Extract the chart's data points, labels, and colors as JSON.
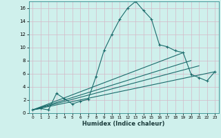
{
  "title": "",
  "xlabel": "Humidex (Indice chaleur)",
  "ylabel": "",
  "bg_color": "#cff0ec",
  "grid_color": "#d4b8c8",
  "line_color": "#1a6b6b",
  "xlim": [
    -0.5,
    23.5
  ],
  "ylim": [
    0,
    17
  ],
  "xticks": [
    0,
    1,
    2,
    3,
    4,
    5,
    6,
    7,
    8,
    9,
    10,
    11,
    12,
    13,
    14,
    15,
    16,
    17,
    18,
    19,
    20,
    21,
    22,
    23
  ],
  "yticks": [
    0,
    2,
    4,
    6,
    8,
    10,
    12,
    14,
    16
  ],
  "series": [
    {
      "x": [
        0,
        1,
        2,
        3,
        4,
        5,
        6,
        7,
        8,
        9,
        10,
        11,
        12,
        13,
        14,
        15,
        16,
        17,
        18,
        19,
        20,
        21,
        22,
        23
      ],
      "y": [
        0.5,
        0.7,
        0.5,
        3.0,
        2.2,
        1.4,
        1.8,
        2.1,
        5.6,
        9.5,
        12.0,
        14.3,
        16.0,
        17.0,
        15.6,
        14.3,
        10.4,
        10.1,
        9.5,
        9.2,
        5.9,
        5.4,
        4.9,
        6.3
      ],
      "has_markers": true
    },
    {
      "x": [
        0,
        19
      ],
      "y": [
        0.5,
        9.2
      ],
      "has_markers": false
    },
    {
      "x": [
        0,
        20
      ],
      "y": [
        0.5,
        8.0
      ],
      "has_markers": false
    },
    {
      "x": [
        0,
        21
      ],
      "y": [
        0.5,
        7.2
      ],
      "has_markers": false
    },
    {
      "x": [
        0,
        23
      ],
      "y": [
        0.5,
        6.3
      ],
      "has_markers": false
    }
  ]
}
